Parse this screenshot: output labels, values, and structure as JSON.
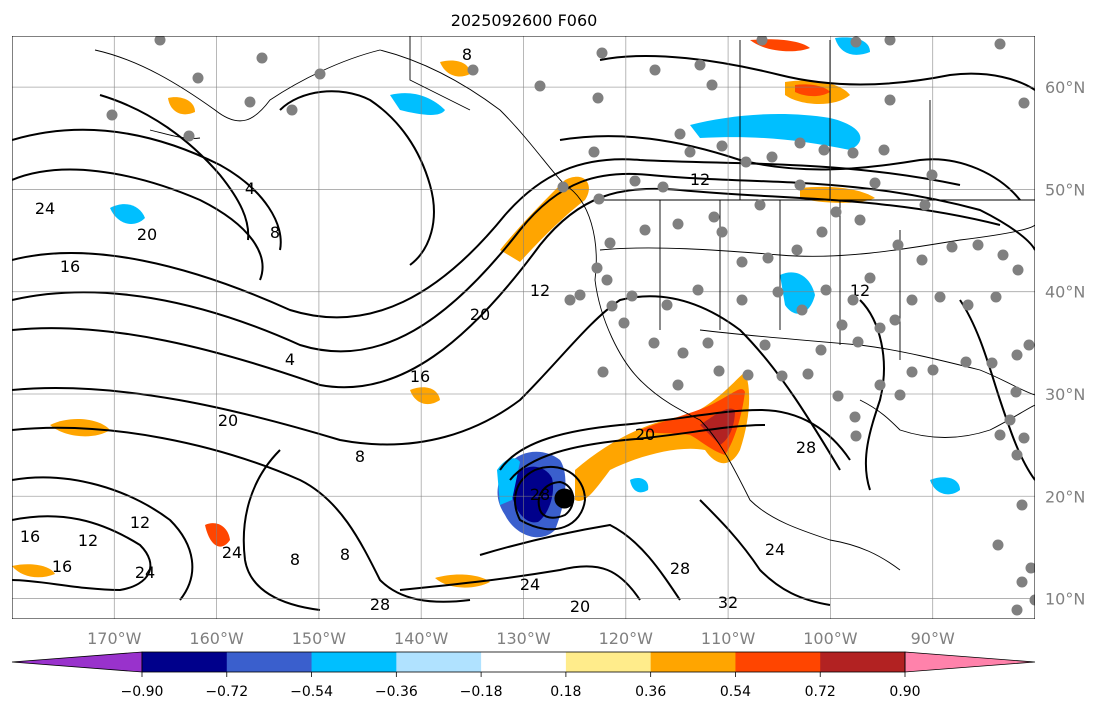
{
  "title": "2025092600 F060",
  "map": {
    "lon_range": [
      -180,
      -80
    ],
    "lat_range": [
      8,
      65
    ],
    "lon_gridlines": [
      -170,
      -160,
      -150,
      -140,
      -130,
      -120,
      -110,
      -100,
      -90
    ],
    "lat_gridlines": [
      10,
      20,
      30,
      40,
      50,
      60
    ],
    "lon_labels": [
      "170°W",
      "160°W",
      "150°W",
      "140°W",
      "130°W",
      "120°W",
      "110°W",
      "100°W",
      "90°W"
    ],
    "lat_labels": [
      "10°N",
      "20°N",
      "30°N",
      "40°N",
      "50°N",
      "60°N"
    ],
    "contour_labels": [
      "8",
      "12",
      "16",
      "20",
      "24",
      "28",
      "32",
      "4"
    ],
    "storm_center": {
      "lon": -126,
      "lat": 19
    }
  },
  "colorbar": {
    "ticks": [
      "−0.90",
      "−0.72",
      "−0.54",
      "−0.36",
      "−0.18",
      "0.18",
      "0.36",
      "0.54",
      "0.72",
      "0.90"
    ],
    "colors": [
      "#9932cc",
      "#00008b",
      "#3a5fcd",
      "#00bfff",
      "#b0e2ff",
      "#ffffff",
      "#ffec8b",
      "#ffa500",
      "#ff4500",
      "#b22222",
      "#ff82ab"
    ],
    "extend": "both"
  },
  "stations": {
    "color": "#808080"
  }
}
